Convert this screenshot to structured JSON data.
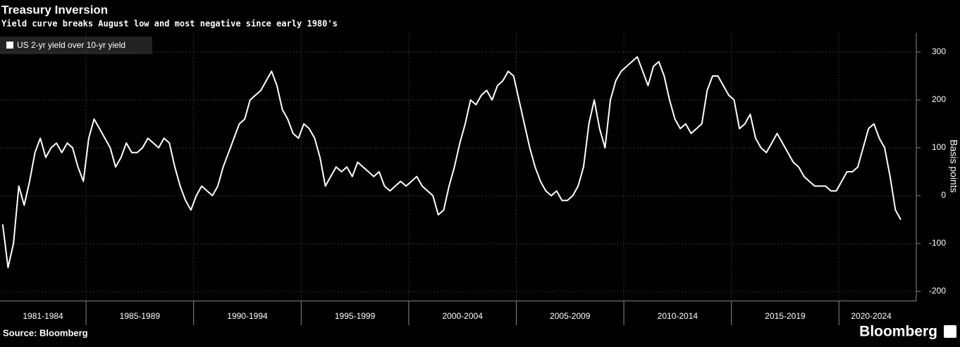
{
  "chart_data": {
    "type": "line",
    "title": "Treasury Inversion",
    "subtitle": "Yield curve breaks August low and most negative since early 1980's",
    "ylabel": "Basis points",
    "source": "Source: Bloomberg",
    "brand": "Bloomberg",
    "categories": [
      "1981-1984",
      "1985-1989",
      "1990-1994",
      "1995-1999",
      "2000-2004",
      "2005-2009",
      "2010-2014",
      "2015-2019",
      "2020-2024"
    ],
    "series": [
      {
        "name": "US 2-yr yield over 10-yr yield",
        "color": "#ffffff",
        "values": [
          [
            -60,
            -150,
            -100,
            20,
            -20,
            30,
            90,
            120,
            80,
            100,
            110,
            90,
            110,
            100,
            60,
            30
          ],
          [
            120,
            160,
            140,
            120,
            100,
            60,
            80,
            110,
            90,
            90,
            100,
            120,
            110,
            100,
            120,
            110,
            60,
            20,
            -10,
            -30
          ],
          [
            0,
            20,
            10,
            0,
            20,
            60,
            90,
            120,
            150,
            160,
            200,
            210,
            220,
            240,
            260,
            230,
            180,
            160,
            130,
            120
          ],
          [
            150,
            140,
            120,
            80,
            20,
            40,
            60,
            50,
            60,
            40,
            70,
            60,
            50,
            40,
            50,
            20,
            10,
            20,
            30,
            20
          ],
          [
            30,
            40,
            20,
            10,
            0,
            -40,
            -30,
            20,
            60,
            110,
            150,
            200,
            190,
            210,
            220,
            200,
            230,
            240,
            260,
            250
          ],
          [
            200,
            150,
            100,
            60,
            30,
            10,
            0,
            10,
            -10,
            -10,
            0,
            20,
            60,
            150,
            200,
            140,
            100,
            200,
            240,
            260
          ],
          [
            270,
            280,
            290,
            260,
            230,
            270,
            280,
            250,
            200,
            160,
            140,
            150,
            130,
            140,
            150,
            220,
            250,
            250,
            230,
            210
          ],
          [
            200,
            140,
            150,
            170,
            120,
            100,
            90,
            110,
            130,
            110,
            90,
            70,
            60,
            40,
            30,
            20,
            20,
            20,
            10,
            10
          ],
          [
            30,
            50,
            50,
            60,
            100,
            140,
            150,
            120,
            100,
            40,
            -30,
            -50
          ]
        ]
      }
    ],
    "ylim": [
      -220,
      340
    ],
    "yticks": [
      -200,
      -100,
      0,
      100,
      200,
      300
    ],
    "grid": true
  }
}
